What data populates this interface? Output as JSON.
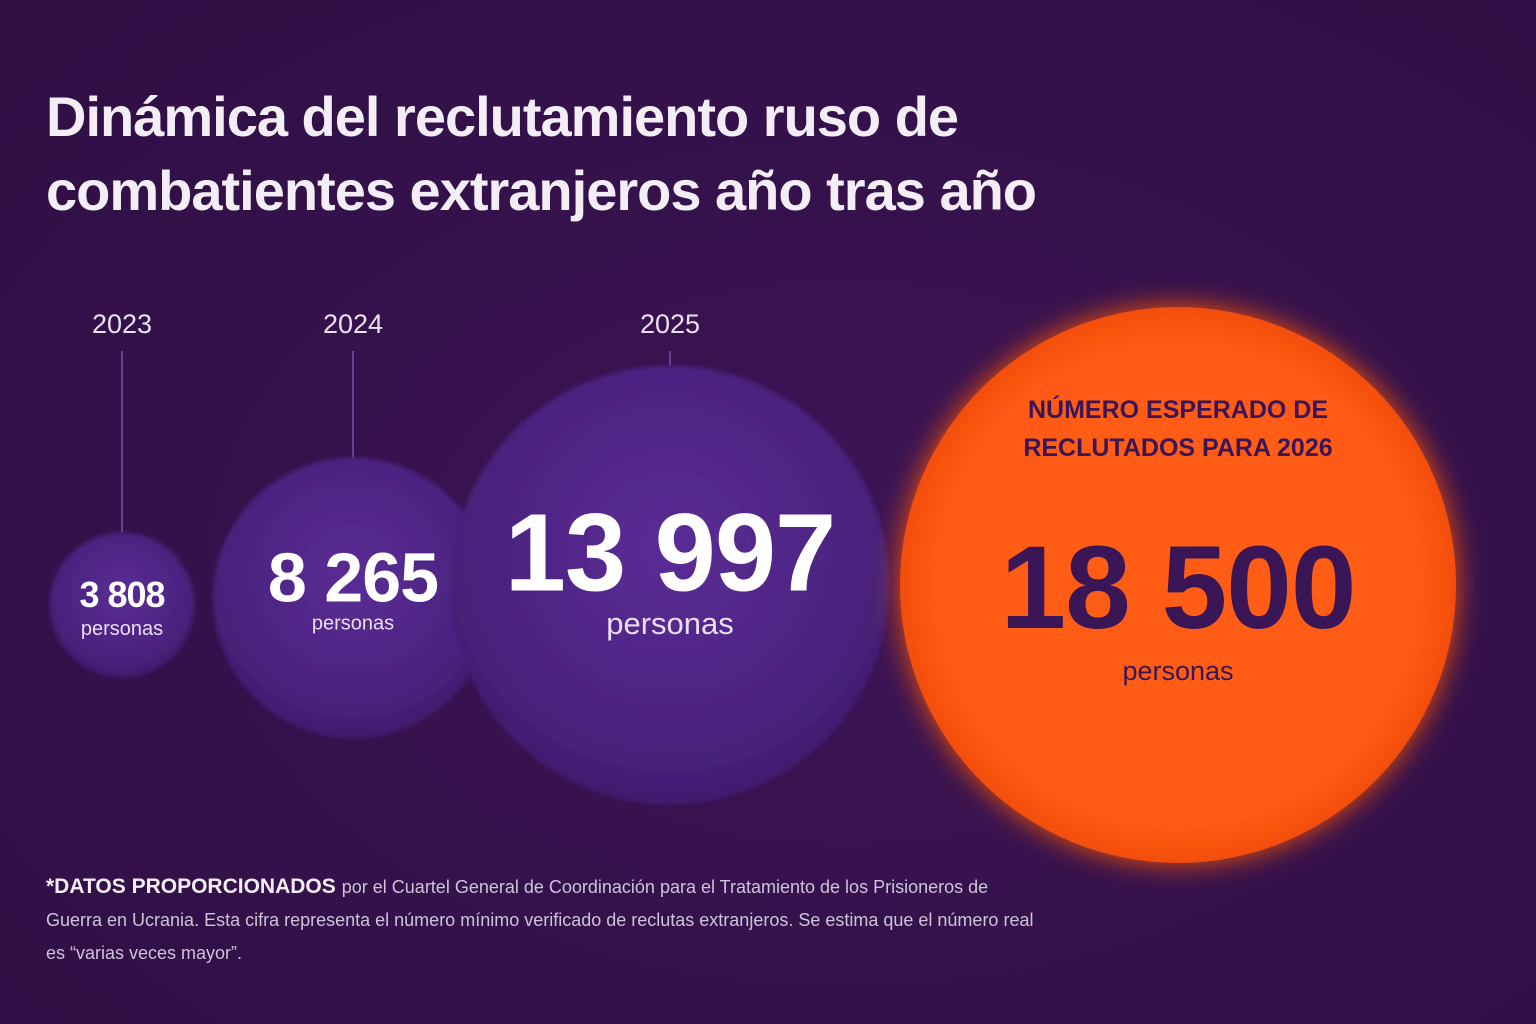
{
  "title": "Dinámica del reclutamiento ruso de combatientes extranjeros año tras año",
  "colors": {
    "background": "#35124a",
    "bubble_historic": "#4c2480",
    "bubble_forecast": "#ff5a12",
    "forecast_text": "#3a1657",
    "historic_text": "#ffffff"
  },
  "chart_data": {
    "type": "bubble",
    "title": "Dinámica del reclutamiento ruso de combatientes extranjeros año tras año",
    "unit": "personas",
    "points": [
      {
        "year": "2023",
        "value": 3808,
        "value_label": "3 808",
        "unit_label": "personas",
        "forecast": false
      },
      {
        "year": "2024",
        "value": 8265,
        "value_label": "8 265",
        "unit_label": "personas",
        "forecast": false
      },
      {
        "year": "2025",
        "value": 13997,
        "value_label": "13 997",
        "unit_label": "personas",
        "forecast": false
      },
      {
        "year": "2026",
        "value": 18500,
        "value_label": "18 500",
        "unit_label": "personas",
        "forecast": true,
        "label_lines": [
          "NÚMERO ESPERADO DE",
          "RECLUTADOS PARA 2026"
        ]
      }
    ]
  },
  "footnote": {
    "lead": "*DATOS PROPORCIONADOS",
    "text": "por el Cuartel General de Coordinación para el Tratamiento de los Prisioneros de Guerra en Ucrania. Esta cifra representa el número mínimo verificado de reclutas extranjeros. Se estima que el número real es “varias veces mayor”."
  }
}
